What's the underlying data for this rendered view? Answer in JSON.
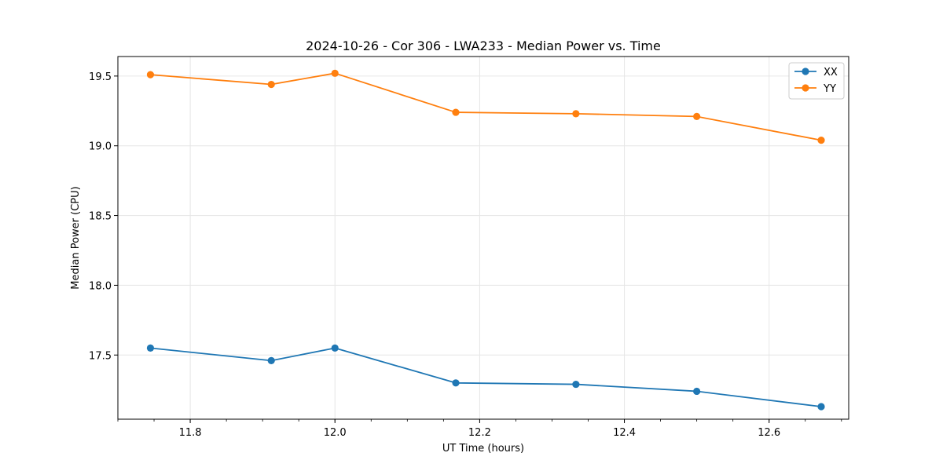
{
  "chart_data": {
    "type": "line",
    "title": "2024-10-26 - Cor 306 - LWA233 - Median Power vs. Time",
    "xlabel": "UT Time (hours)",
    "ylabel": "Median Power (CPU)",
    "xlim": [
      11.7,
      12.71
    ],
    "ylim": [
      17.04,
      19.64
    ],
    "xticks": [
      11.8,
      12.0,
      12.2,
      12.4,
      12.6
    ],
    "xtick_labels": [
      "11.8",
      "12.0",
      "12.2",
      "12.4",
      "12.6"
    ],
    "yticks": [
      17.5,
      18.0,
      18.5,
      19.0,
      19.5
    ],
    "ytick_labels": [
      "17.5",
      "18.0",
      "18.5",
      "19.0",
      "19.5"
    ],
    "grid": true,
    "legend_position": "top-right",
    "x": [
      11.745,
      11.912,
      12.0,
      12.167,
      12.333,
      12.5,
      12.672
    ],
    "series": [
      {
        "name": "XX",
        "color": "#1f77b4",
        "values": [
          17.55,
          17.46,
          17.55,
          17.3,
          17.29,
          17.24,
          17.13
        ]
      },
      {
        "name": "YY",
        "color": "#ff7f0e",
        "values": [
          19.51,
          19.44,
          19.52,
          19.24,
          19.23,
          19.21,
          19.04
        ]
      }
    ]
  }
}
